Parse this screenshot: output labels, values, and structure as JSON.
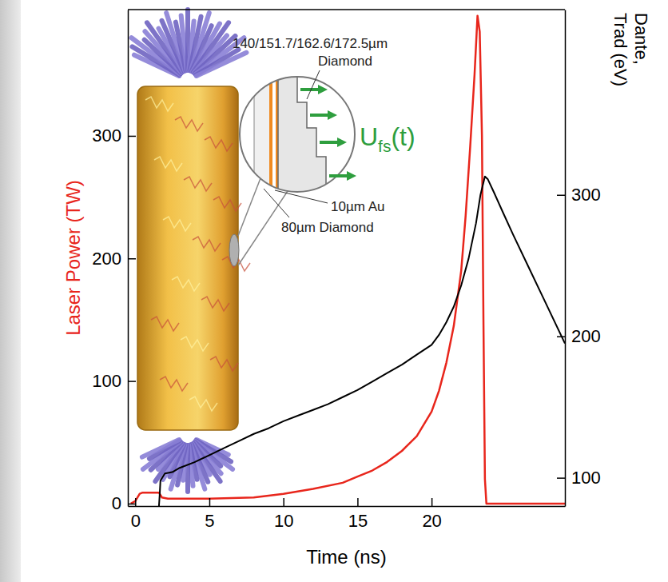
{
  "chart_data": {
    "type": "line",
    "x_label": "Time (ns)",
    "y_label": "Laser Power (TW)",
    "y2_label": [
      "Dante,",
      "Trad (eV)"
    ],
    "xlim": [
      -0.5,
      29
    ],
    "xticks": [
      0,
      5,
      10,
      15,
      20
    ],
    "ylim": [
      -2,
      403
    ],
    "yticks": [
      0,
      100,
      200,
      300
    ],
    "y2lim": [
      80,
      431
    ],
    "y2ticks": [
      100,
      200,
      300
    ],
    "series": [
      {
        "color": "#e8261c",
        "x": [
          -0.3,
          0,
          0.3,
          0.5,
          1.6,
          1.8,
          2.2,
          5,
          8,
          10,
          12,
          14,
          15,
          16,
          17,
          18,
          19,
          20,
          20.5,
          21,
          21.5,
          22,
          22.3,
          22.6,
          22.9,
          23.1,
          23.25,
          23.4,
          23.5,
          23.6,
          23.7,
          29
        ],
        "values": [
          0,
          2,
          8,
          9,
          9,
          5,
          4,
          4,
          5,
          8,
          12,
          17,
          22,
          27,
          34,
          43,
          55,
          75,
          92,
          115,
          145,
          190,
          235,
          290,
          350,
          398,
          385,
          300,
          150,
          20,
          0,
          0
        ]
      },
      {
        "color": "#000000",
        "axis": "y2",
        "x": [
          1.6,
          1.65,
          1.7,
          2,
          2.5,
          3,
          4,
          5,
          6,
          7,
          8,
          9,
          10,
          11,
          12,
          13,
          14,
          15,
          16,
          17,
          18,
          19,
          20,
          20.5,
          21,
          21.5,
          22,
          22.5,
          23,
          23.3,
          23.6,
          23.8,
          24.2,
          24.8,
          25.5,
          26.5,
          27.5,
          29
        ],
        "values": [
          80,
          88,
          98,
          103,
          104,
          107,
          111,
          116,
          121,
          126,
          131,
          135,
          140,
          144,
          148,
          152,
          157,
          162,
          168,
          174,
          180,
          187,
          194,
          201,
          210,
          221,
          236,
          255,
          280,
          300,
          313,
          311,
          302,
          288,
          272,
          250,
          228,
          195
        ]
      }
    ],
    "annotations": {
      "step_thicknesses": "140/151.7/162.6/172.5µm",
      "step_material": "Diamond",
      "au_layer": "10µm Au",
      "ablator": "80µm Diamond",
      "velocity": {
        "symbol": "U",
        "subscript": "fs",
        "argument": "(t)"
      }
    }
  }
}
